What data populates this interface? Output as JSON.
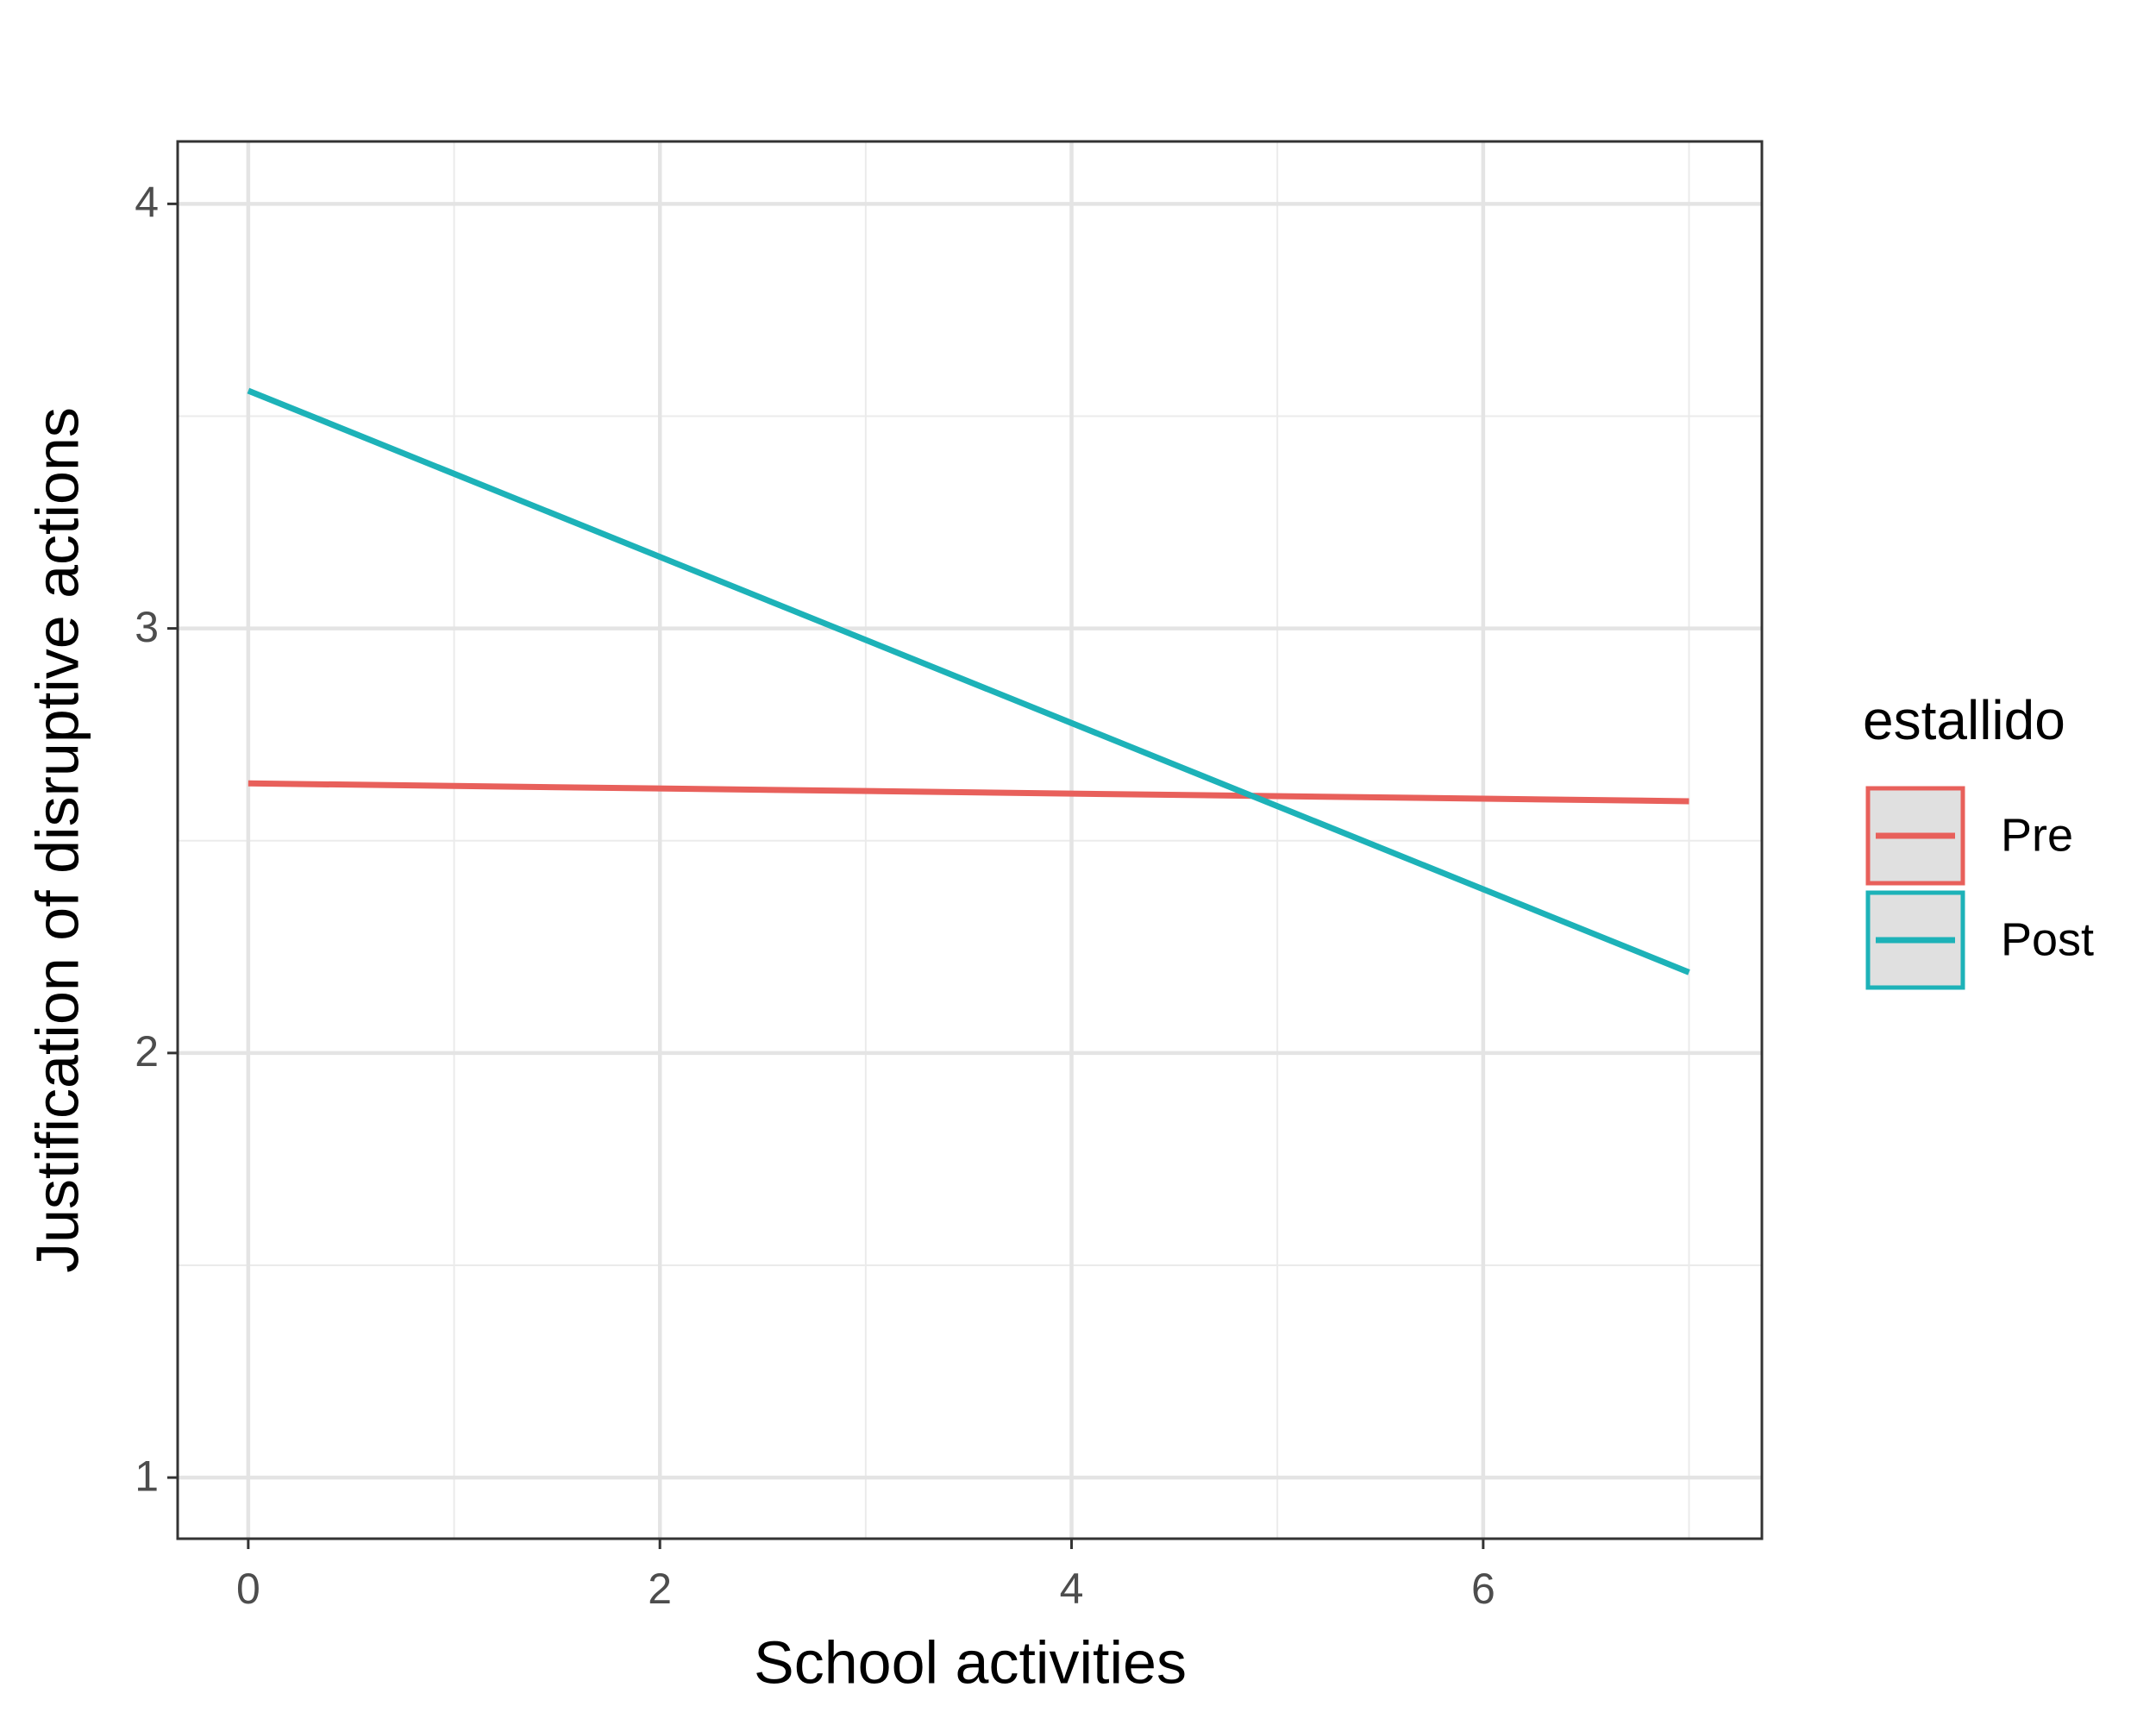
{
  "chart_data": {
    "type": "line",
    "x_label": "School activities",
    "y_label": "Justification of disruptive actions",
    "legend_title": "estallido",
    "legend_position": "right",
    "x": [
      0,
      7
    ],
    "series": [
      {
        "name": "Pre",
        "color": "#E8605B",
        "values": [
          2.635,
          2.593
        ]
      },
      {
        "name": "Post",
        "color": "#1DB2B8",
        "values": [
          3.56,
          2.19
        ]
      }
    ],
    "xlim": [
      -0.343,
      7.354
    ],
    "xticks": [
      0,
      2,
      4,
      6
    ],
    "ylim": [
      0.856,
      4.147
    ],
    "yticks": [
      1,
      2,
      3,
      4
    ],
    "x_minor_grid": [
      1,
      3,
      5,
      7
    ],
    "y_minor_grid": [
      1.5,
      2.5,
      3.5
    ],
    "grid": true
  }
}
